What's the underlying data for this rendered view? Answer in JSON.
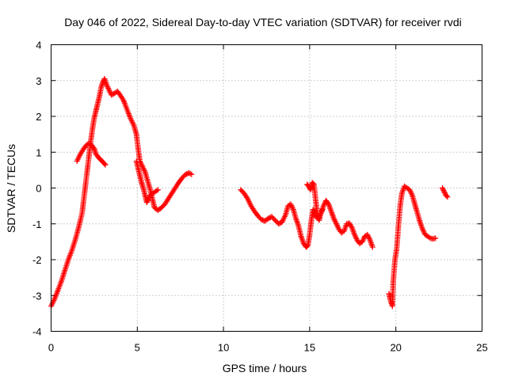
{
  "chart_data": {
    "type": "scatter",
    "title": "Day 046 of 2022, Sidereal Day-to-day VTEC variation (SDTVAR) for receiver rvdi",
    "xlabel": "GPS time / hours",
    "ylabel": "SDTVAR / TECUs",
    "xlim": [
      0,
      25
    ],
    "ylim": [
      -4,
      4
    ],
    "xticks": [
      0,
      5,
      10,
      15,
      20,
      25
    ],
    "yticks": [
      -4,
      -3,
      -2,
      -1,
      0,
      1,
      2,
      3,
      4
    ],
    "grid": true,
    "marker": "plus",
    "color": "#ff0000",
    "series": [
      {
        "name": "rvdi",
        "segments": [
          [
            [
              0.0,
              -3.3
            ],
            [
              0.2,
              -3.1
            ],
            [
              0.4,
              -2.85
            ],
            [
              0.6,
              -2.6
            ],
            [
              0.8,
              -2.3
            ],
            [
              1.0,
              -2.0
            ],
            [
              1.2,
              -1.75
            ],
            [
              1.4,
              -1.45
            ],
            [
              1.6,
              -1.1
            ],
            [
              1.8,
              -0.7
            ],
            [
              1.9,
              -0.3
            ],
            [
              2.0,
              0.1
            ],
            [
              2.1,
              0.5
            ],
            [
              2.2,
              0.9
            ],
            [
              2.3,
              1.3
            ],
            [
              2.4,
              1.65
            ],
            [
              2.5,
              1.95
            ],
            [
              2.6,
              2.15
            ],
            [
              2.7,
              2.35
            ],
            [
              2.8,
              2.55
            ],
            [
              2.9,
              2.8
            ],
            [
              3.0,
              2.95
            ],
            [
              3.1,
              3.05
            ],
            [
              3.2,
              2.9
            ],
            [
              3.35,
              2.75
            ],
            [
              3.5,
              2.6
            ],
            [
              3.7,
              2.65
            ],
            [
              3.85,
              2.7
            ],
            [
              4.0,
              2.6
            ],
            [
              4.2,
              2.45
            ],
            [
              4.4,
              2.2
            ],
            [
              4.6,
              1.95
            ],
            [
              4.8,
              1.75
            ],
            [
              4.95,
              1.5
            ],
            [
              5.05,
              1.1
            ],
            [
              5.15,
              0.75
            ],
            [
              5.3,
              0.6
            ],
            [
              5.45,
              0.45
            ],
            [
              5.6,
              0.2
            ],
            [
              5.75,
              -0.05
            ],
            [
              5.9,
              -0.35
            ],
            [
              6.0,
              -0.55
            ],
            [
              6.2,
              -0.62
            ],
            [
              6.4,
              -0.55
            ],
            [
              6.6,
              -0.45
            ],
            [
              6.8,
              -0.3
            ],
            [
              7.0,
              -0.15
            ],
            [
              7.2,
              0.0
            ],
            [
              7.4,
              0.15
            ],
            [
              7.6,
              0.28
            ],
            [
              7.8,
              0.38
            ],
            [
              8.0,
              0.42
            ],
            [
              8.15,
              0.38
            ]
          ],
          [
            [
              1.5,
              0.75
            ],
            [
              1.7,
              0.95
            ],
            [
              1.9,
              1.1
            ],
            [
              2.05,
              1.2
            ],
            [
              2.2,
              1.25
            ],
            [
              2.35,
              1.2
            ],
            [
              2.5,
              1.1
            ],
            [
              2.6,
              0.95
            ],
            [
              2.75,
              0.85
            ],
            [
              2.9,
              0.78
            ],
            [
              3.05,
              0.7
            ],
            [
              3.15,
              0.65
            ]
          ],
          [
            [
              4.95,
              0.75
            ],
            [
              5.05,
              0.55
            ],
            [
              5.15,
              0.35
            ],
            [
              5.25,
              0.15
            ],
            [
              5.35,
              0.0
            ],
            [
              5.45,
              -0.2
            ],
            [
              5.55,
              -0.4
            ],
            [
              5.65,
              -0.3
            ],
            [
              5.75,
              -0.2
            ],
            [
              5.9,
              -0.15
            ],
            [
              6.05,
              -0.1
            ],
            [
              6.2,
              -0.05
            ]
          ],
          [
            [
              11.0,
              -0.05
            ],
            [
              11.2,
              -0.15
            ],
            [
              11.4,
              -0.3
            ],
            [
              11.6,
              -0.5
            ],
            [
              11.8,
              -0.65
            ],
            [
              12.0,
              -0.78
            ],
            [
              12.2,
              -0.88
            ],
            [
              12.4,
              -0.92
            ],
            [
              12.6,
              -0.85
            ],
            [
              12.8,
              -0.8
            ],
            [
              13.0,
              -0.9
            ],
            [
              13.2,
              -1.0
            ],
            [
              13.4,
              -0.95
            ],
            [
              13.6,
              -0.75
            ],
            [
              13.75,
              -0.5
            ],
            [
              13.9,
              -0.45
            ],
            [
              14.05,
              -0.6
            ],
            [
              14.2,
              -0.85
            ],
            [
              14.35,
              -1.05
            ],
            [
              14.5,
              -1.35
            ],
            [
              14.65,
              -1.55
            ],
            [
              14.8,
              -1.65
            ],
            [
              14.9,
              -1.6
            ],
            [
              15.0,
              -1.3
            ],
            [
              15.1,
              -0.9
            ],
            [
              15.2,
              -0.6
            ],
            [
              15.35,
              -0.8
            ],
            [
              15.5,
              -0.85
            ],
            [
              15.65,
              -0.7
            ],
            [
              15.8,
              -0.5
            ],
            [
              15.95,
              -0.35
            ],
            [
              16.1,
              -0.45
            ],
            [
              16.25,
              -0.65
            ],
            [
              16.4,
              -0.85
            ],
            [
              16.55,
              -1.0
            ],
            [
              16.7,
              -1.15
            ],
            [
              16.85,
              -1.25
            ],
            [
              17.0,
              -1.2
            ],
            [
              17.15,
              -1.0
            ],
            [
              17.3,
              -0.98
            ],
            [
              17.45,
              -1.1
            ],
            [
              17.6,
              -1.3
            ],
            [
              17.75,
              -1.45
            ],
            [
              17.9,
              -1.55
            ],
            [
              18.05,
              -1.5
            ],
            [
              18.2,
              -1.35
            ],
            [
              18.35,
              -1.3
            ],
            [
              18.5,
              -1.45
            ],
            [
              18.65,
              -1.65
            ]
          ],
          [
            [
              14.85,
              0.1
            ],
            [
              14.95,
              0.05
            ],
            [
              15.05,
              -0.05
            ],
            [
              15.15,
              0.15
            ],
            [
              15.25,
              0.1
            ],
            [
              15.35,
              -0.35
            ],
            [
              15.45,
              -0.75
            ],
            [
              15.55,
              -0.9
            ],
            [
              15.65,
              -0.7
            ],
            [
              15.75,
              -0.6
            ]
          ],
          [
            [
              19.6,
              -2.95
            ],
            [
              19.7,
              -3.15
            ],
            [
              19.8,
              -3.3
            ],
            [
              19.85,
              -2.6
            ],
            [
              19.95,
              -2.0
            ],
            [
              20.05,
              -1.7
            ],
            [
              20.15,
              -1.05
            ],
            [
              20.25,
              -0.5
            ],
            [
              20.35,
              -0.15
            ],
            [
              20.5,
              0.05
            ],
            [
              20.65,
              0.0
            ],
            [
              20.8,
              -0.05
            ],
            [
              20.95,
              -0.2
            ],
            [
              21.1,
              -0.45
            ],
            [
              21.25,
              -0.7
            ],
            [
              21.4,
              -0.95
            ],
            [
              21.55,
              -1.15
            ],
            [
              21.7,
              -1.3
            ],
            [
              21.85,
              -1.35
            ],
            [
              22.0,
              -1.4
            ],
            [
              22.15,
              -1.42
            ],
            [
              22.3,
              -1.4
            ]
          ],
          [
            [
              22.7,
              0.0
            ],
            [
              22.8,
              -0.1
            ],
            [
              22.9,
              -0.2
            ],
            [
              23.0,
              -0.25
            ]
          ]
        ]
      }
    ]
  }
}
